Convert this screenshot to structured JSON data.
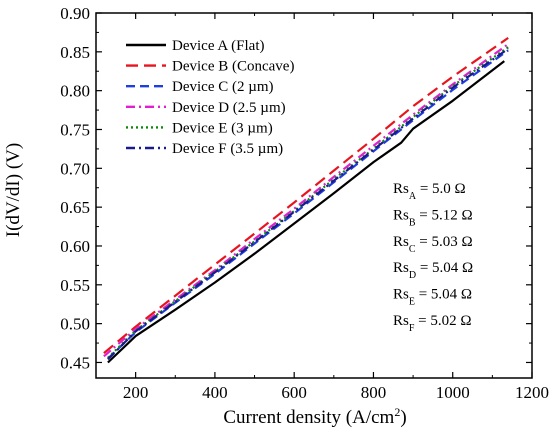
{
  "chart_data": {
    "type": "line",
    "xlabel": "Current density (A/cm",
    "xlabel_sup": "2",
    "xlabel_end": ")",
    "ylabel": "I(dV/dI) (V)",
    "xlim": [
      100,
      1200
    ],
    "ylim": [
      0.43,
      0.9
    ],
    "xticks": [
      200,
      400,
      600,
      800,
      1000,
      1200
    ],
    "yticks": [
      0.45,
      0.5,
      0.55,
      0.6,
      0.65,
      0.7,
      0.75,
      0.8,
      0.85,
      0.9
    ],
    "xtick_labels": [
      "200",
      "400",
      "600",
      "800",
      "1000",
      "1200"
    ],
    "ytick_labels": [
      "0.45",
      "0.50",
      "0.55",
      "0.60",
      "0.65",
      "0.70",
      "0.75",
      "0.80",
      "0.85",
      "0.90"
    ],
    "grid": false,
    "legend_position": "top-left",
    "series": [
      {
        "name": "Device A (Flat)",
        "color": "#000000",
        "dash": "solid",
        "x": [
          130,
          200,
          300,
          400,
          500,
          600,
          700,
          800,
          870,
          900,
          1000,
          1130
        ],
        "y": [
          0.45,
          0.484,
          0.518,
          0.553,
          0.59,
          0.629,
          0.668,
          0.708,
          0.733,
          0.751,
          0.787,
          0.838
        ]
      },
      {
        "name": "Device B (Concave)",
        "color": "#e8141e",
        "dash": "long-dash",
        "x": [
          120,
          200,
          300,
          400,
          500,
          600,
          700,
          800,
          900,
          1000,
          1140
        ],
        "y": [
          0.462,
          0.496,
          0.536,
          0.576,
          0.616,
          0.656,
          0.697,
          0.738,
          0.78,
          0.818,
          0.868
        ]
      },
      {
        "name": "Device C (2 µm)",
        "color": "#1f3de0",
        "dash": "dash",
        "x": [
          130,
          200,
          300,
          400,
          500,
          600,
          700,
          800,
          900,
          1000,
          1140
        ],
        "y": [
          0.455,
          0.489,
          0.527,
          0.564,
          0.603,
          0.642,
          0.682,
          0.722,
          0.762,
          0.801,
          0.852
        ]
      },
      {
        "name": "Device D (2.5 µm)",
        "color": "#e020d0",
        "dash": "dash-dot",
        "x": [
          120,
          200,
          300,
          400,
          500,
          600,
          700,
          800,
          900,
          1000,
          1140
        ],
        "y": [
          0.458,
          0.493,
          0.531,
          0.569,
          0.609,
          0.648,
          0.689,
          0.729,
          0.769,
          0.808,
          0.86
        ]
      },
      {
        "name": "Device E (3 µm)",
        "color": "#0a8a0a",
        "dash": "dotted",
        "x": [
          130,
          200,
          300,
          400,
          500,
          600,
          700,
          800,
          900,
          1000,
          1140
        ],
        "y": [
          0.456,
          0.491,
          0.529,
          0.567,
          0.606,
          0.645,
          0.686,
          0.725,
          0.766,
          0.806,
          0.856
        ]
      },
      {
        "name": "Device F (3.5 µm)",
        "color": "#1a1a8c",
        "dash": "dash-dot",
        "x": [
          130,
          200,
          300,
          400,
          500,
          600,
          700,
          800,
          900,
          1000,
          1140
        ],
        "y": [
          0.454,
          0.49,
          0.528,
          0.566,
          0.605,
          0.644,
          0.684,
          0.724,
          0.764,
          0.804,
          0.854
        ]
      }
    ],
    "annotations": [
      {
        "base": "Rs",
        "sub": "A",
        "text": " = 5.0 Ω"
      },
      {
        "base": "Rs",
        "sub": "B",
        "text": " = 5.12 Ω"
      },
      {
        "base": "Rs",
        "sub": "C",
        "text": " = 5.03 Ω"
      },
      {
        "base": "Rs",
        "sub": "D",
        "text": " = 5.04 Ω"
      },
      {
        "base": "Rs",
        "sub": "E",
        "text": " = 5.04 Ω"
      },
      {
        "base": "Rs",
        "sub": "F",
        "text": " = 5.02 Ω"
      }
    ]
  }
}
